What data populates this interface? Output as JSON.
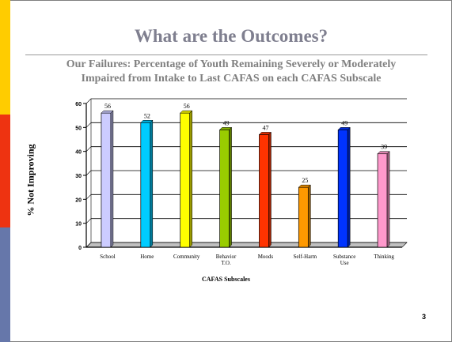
{
  "slide": {
    "title": "What are the Outcomes?",
    "subtitle_line1": "Our Failures: Percentage of Youth Remaining Severely or Moderately",
    "subtitle_line2": "Impaired from Intake to Last CAFAS on each CAFAS Subscale",
    "page_number": "3",
    "band_colors": [
      "#ffcc00",
      "#ee3311",
      "#6677aa"
    ]
  },
  "chart_data": {
    "type": "bar",
    "title": "",
    "xlabel": "CAFAS Subscales",
    "ylabel": "% Not Improving",
    "ylim": [
      0,
      60
    ],
    "yticks": [
      0,
      10,
      20,
      30,
      40,
      50,
      60
    ],
    "grid": true,
    "categories": [
      "School",
      "Home",
      "Community",
      "Behavior T.O.",
      "Moods",
      "Self-Harm",
      "Substance Use",
      "Thinking"
    ],
    "category_lines": [
      [
        "School"
      ],
      [
        "Home"
      ],
      [
        "Community"
      ],
      [
        "Behavior",
        "T.O."
      ],
      [
        "Moods"
      ],
      [
        "Self-Harm"
      ],
      [
        "Substance",
        "Use"
      ],
      [
        "Thinking"
      ]
    ],
    "values": [
      56,
      52,
      56,
      49,
      47,
      25,
      49,
      39
    ],
    "data_labels": [
      "56",
      "52",
      "56",
      "49",
      "47",
      "25",
      "49",
      "39"
    ],
    "colors": [
      "#ccccff",
      "#00ccff",
      "#ffff00",
      "#99cc00",
      "#ff3300",
      "#ff9900",
      "#0033ff",
      "#ff99cc"
    ]
  }
}
